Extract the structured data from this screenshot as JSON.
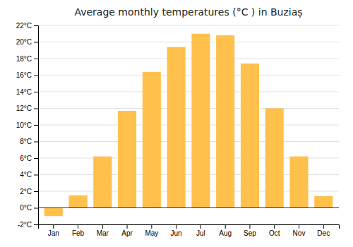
{
  "chart_data": {
    "type": "bar",
    "title": "Average monthly temperatures (°C ) in Buziaș",
    "categories": [
      "Jan",
      "Feb",
      "Mar",
      "Apr",
      "May",
      "Jun",
      "Jul",
      "Aug",
      "Sep",
      "Oct",
      "Nov",
      "Dec"
    ],
    "values": [
      -1.0,
      1.5,
      6.2,
      11.7,
      16.4,
      19.4,
      21.0,
      20.8,
      17.4,
      12.0,
      6.2,
      1.4
    ],
    "color": "#FFC04C",
    "ylim": [
      -2,
      22
    ],
    "yticks": [
      {
        "value": -2,
        "label": "-2°C"
      },
      {
        "value": 0,
        "label": "0°C"
      },
      {
        "value": 2,
        "label": "2°C"
      },
      {
        "value": 4,
        "label": "4°C"
      },
      {
        "value": 6,
        "label": "6°C"
      },
      {
        "value": 8,
        "label": "8°C"
      },
      {
        "value": 10,
        "label": "10°C"
      },
      {
        "value": 12,
        "label": "12°C"
      },
      {
        "value": 14,
        "label": "14°C"
      },
      {
        "value": 16,
        "label": "16°C"
      },
      {
        "value": 18,
        "label": "18°C"
      },
      {
        "value": 20,
        "label": "20°C"
      },
      {
        "value": 22,
        "label": "22°C"
      }
    ],
    "grid": true
  }
}
